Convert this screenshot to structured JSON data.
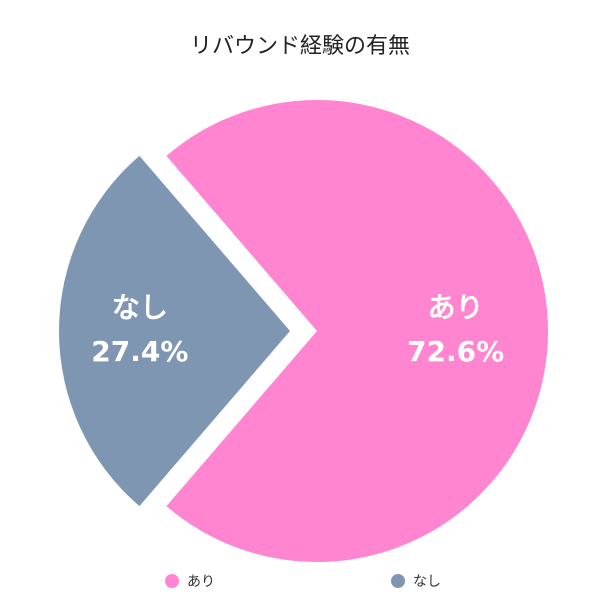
{
  "chart_data": {
    "type": "pie",
    "title": "リバウンド経験の有無",
    "slices": [
      {
        "label": "あり",
        "value": 72.6,
        "display": "72.6%",
        "color": "#FF85D0"
      },
      {
        "label": "なし",
        "value": 27.4,
        "display": "27.4%",
        "color": "#7F96B3"
      }
    ],
    "exploded": "なし",
    "legend": "bottom"
  }
}
